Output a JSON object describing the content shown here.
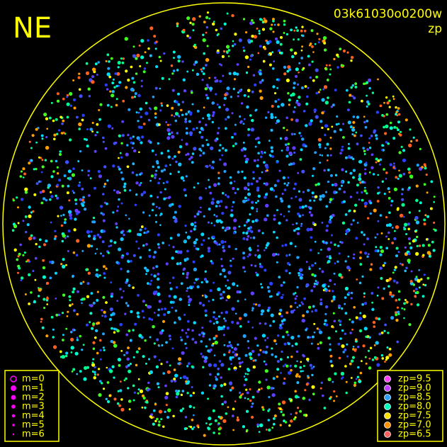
{
  "header": {
    "direction": "NE",
    "frame_id": "03k61030o0200w",
    "mode": "zp"
  },
  "magnitude_legend": {
    "items": [
      {
        "label": "m=0",
        "color": "#ff00ff"
      },
      {
        "label": "m=1",
        "color": "#ff00ff"
      },
      {
        "label": "m=2",
        "color": "#ff00ff"
      },
      {
        "label": "m=3",
        "color": "#ff00ff"
      },
      {
        "label": "m=4",
        "color": "#ff00ff"
      },
      {
        "label": "m=5",
        "color": "#ff00ff"
      },
      {
        "label": "m=6",
        "color": "#ff00ff"
      }
    ]
  },
  "zp_legend": {
    "items": [
      {
        "label": "zp=9.5",
        "color": "#ff40ff"
      },
      {
        "label": "zp=9.0",
        "color": "#c040ff"
      },
      {
        "label": "zp=8.5",
        "color": "#30a0ff"
      },
      {
        "label": "zp=8.0",
        "color": "#00ffc0"
      },
      {
        "label": "zp=7.5",
        "color": "#ffe000"
      },
      {
        "label": "zp=7.0",
        "color": "#ff9000"
      },
      {
        "label": "zp=6.5",
        "color": "#ff6060"
      }
    ]
  }
}
